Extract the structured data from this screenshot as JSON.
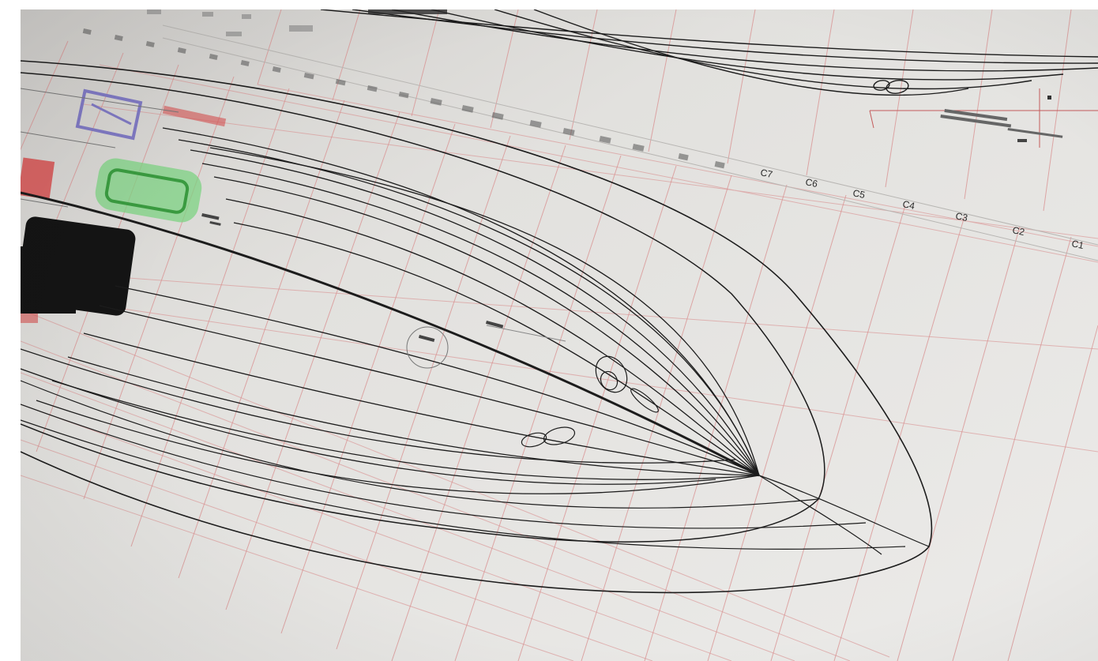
{
  "image": {
    "subject": "boat hull lines drawing on gridded paper",
    "palette": {
      "paper": "#e4e3e1",
      "paper_light": "#efeeec",
      "grid_red": "#d98f8f",
      "ink": "#1c1c1c",
      "marker_purple": "#7f79c2",
      "marker_green": "#59c25e",
      "marker_red": "#d65050",
      "marker_black": "#141414"
    }
  },
  "station_labels": [
    "C1",
    "C2",
    "C3",
    "C4",
    "C5",
    "C6",
    "C7"
  ]
}
